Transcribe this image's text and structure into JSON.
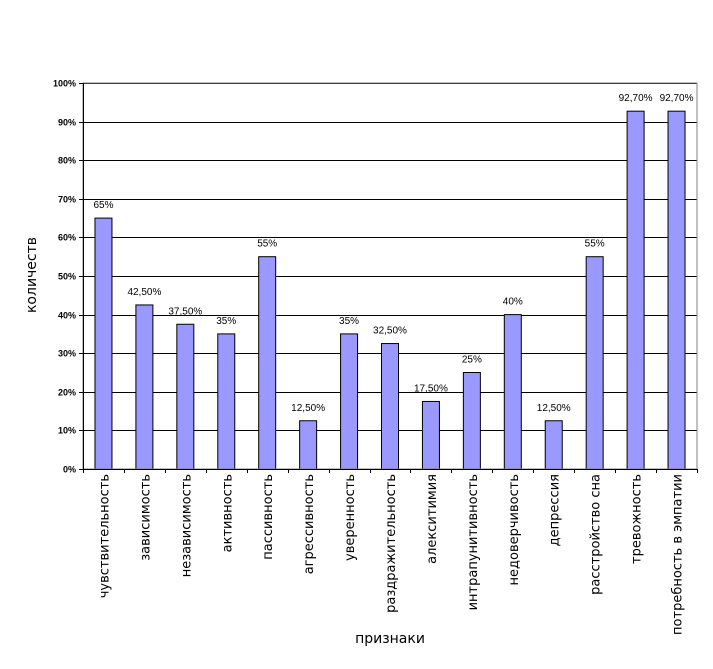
{
  "chart_data": {
    "type": "bar",
    "title": "",
    "xlabel": "признаки",
    "ylabel": "количеств",
    "ylim": [
      0,
      100
    ],
    "yticks": [
      0,
      10,
      20,
      30,
      40,
      50,
      60,
      70,
      80,
      90,
      100
    ],
    "ytick_labels": [
      "0%",
      "10%",
      "20%",
      "30%",
      "40%",
      "50%",
      "60%",
      "70%",
      "80%",
      "90%",
      "100%"
    ],
    "grid": true,
    "legend": "none",
    "bar_color": "#9999FF",
    "categories": [
      "чувствительность",
      "зависимость",
      "независимость",
      "активность",
      "пассивность",
      "агрессивность",
      "уверенность",
      "раздражительность",
      "алекситимия",
      "интрапунитивность",
      "недоверчивость",
      "депрессия",
      "расстройство сна",
      "тревожность",
      "потребность в эмпатии"
    ],
    "values": [
      65,
      42.5,
      37.5,
      35,
      55,
      12.5,
      35,
      32.5,
      17.5,
      25,
      40,
      12.5,
      55,
      92.7,
      92.7
    ],
    "data_labels": [
      "65%",
      "42,50%",
      "37,50%",
      "35%",
      "55%",
      "12,50%",
      "35%",
      "32,50%",
      "17,50%",
      "25%",
      "40%",
      "12,50%",
      "55%",
      "92,70%",
      "92,70%"
    ]
  }
}
